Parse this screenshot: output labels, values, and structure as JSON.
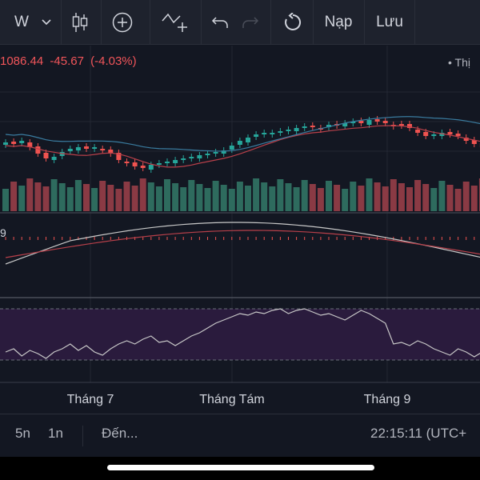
{
  "toolbar": {
    "interval_label": "W",
    "deposit_label": "Nạp",
    "save_label": "Lưu"
  },
  "legend": {
    "price": "1086.44",
    "change": "-45.67",
    "change_percent": "(-4.03%)",
    "visibility_label": "• Thị",
    "macd_label": "9"
  },
  "x_axis": {
    "months": [
      "Tháng 7",
      "Tháng Tám",
      "Tháng 9"
    ]
  },
  "bottom_bar": {
    "range_5n": "5n",
    "range_1n": "1n",
    "goto_label": "Đến...",
    "clock": "22:15:11 (UTC+"
  },
  "colors": {
    "up": "#26a69a",
    "down": "#ef5350",
    "vol_up": "#2e6b5e",
    "vol_down": "#8a3a44",
    "background": "#131722",
    "toolbar": "#1e222d",
    "rsi_band": "#2a1b3d",
    "ma_fast": "#b8404a",
    "ma_slow": "#3a7ca0",
    "osc_line": "#c8c8c8"
  },
  "icons": [
    "chevron-down-icon",
    "candles-icon",
    "plus-circle-icon",
    "indicators-icon",
    "undo-icon",
    "redo-icon",
    "refresh-icon"
  ]
}
